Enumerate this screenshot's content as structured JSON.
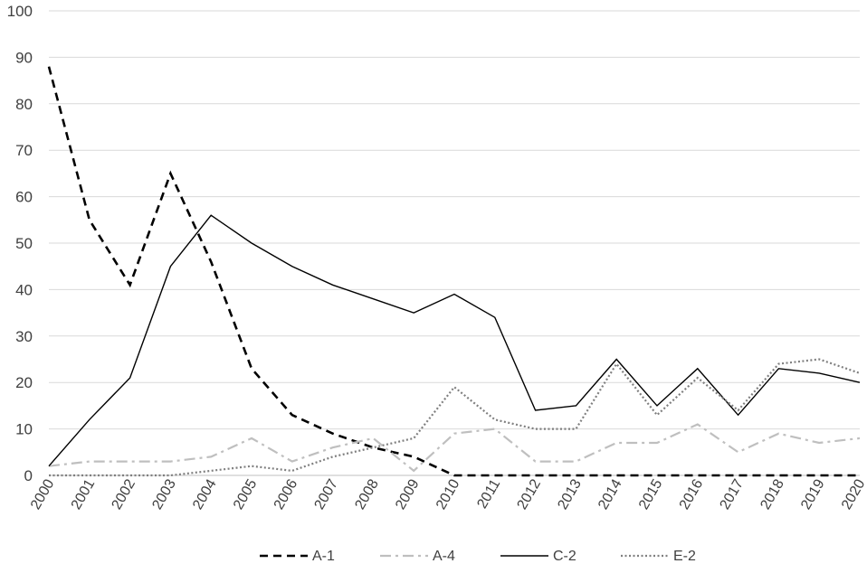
{
  "chart_data": {
    "type": "line",
    "title": "",
    "xlabel": "",
    "ylabel": "",
    "x": [
      "2000",
      "2001",
      "2002",
      "2003",
      "2004",
      "2005",
      "2006",
      "2007",
      "2008",
      "2009",
      "2010",
      "2011",
      "2012",
      "2013",
      "2014",
      "2015",
      "2016",
      "2017",
      "2018",
      "2019",
      "2020"
    ],
    "ylim": [
      0,
      100
    ],
    "yticks": [
      "0",
      "10",
      "20",
      "30",
      "40",
      "50",
      "60",
      "70",
      "80",
      "90",
      "100"
    ],
    "grid": "horizontal",
    "legend": "bottom",
    "series": [
      {
        "name": "A-1",
        "style": "dashed",
        "color": "#000000",
        "values": [
          88,
          55,
          41,
          65,
          46,
          23,
          13,
          9,
          6,
          4,
          0,
          0,
          0,
          0,
          0,
          0,
          0,
          0,
          0,
          0,
          0
        ]
      },
      {
        "name": "A-4",
        "style": "dash-dot",
        "color": "#bfbfbf",
        "values": [
          2,
          3,
          3,
          3,
          4,
          8,
          3,
          6,
          8,
          1,
          9,
          10,
          3,
          3,
          7,
          7,
          11,
          5,
          9,
          7,
          8
        ]
      },
      {
        "name": "C-2",
        "style": "solid",
        "color": "#000000",
        "values": [
          2,
          12,
          21,
          45,
          56,
          50,
          45,
          41,
          38,
          35,
          39,
          34,
          14,
          15,
          25,
          15,
          23,
          13,
          23,
          22,
          20
        ]
      },
      {
        "name": "E-2",
        "style": "dotted",
        "color": "#7f7f7f",
        "values": [
          0,
          0,
          0,
          0,
          1,
          2,
          1,
          4,
          6,
          8,
          19,
          12,
          10,
          10,
          24,
          13,
          21,
          14,
          24,
          25,
          22
        ]
      }
    ]
  }
}
